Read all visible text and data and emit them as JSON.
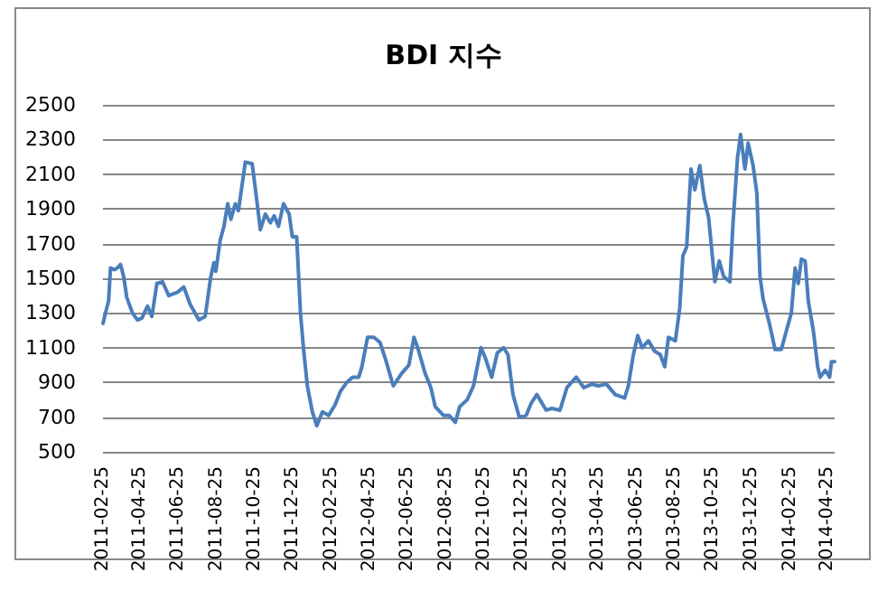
{
  "chart_data": {
    "type": "line",
    "title": "BDI 지수",
    "grid": "y",
    "x": [
      "2011-02-25",
      "2011-03-01",
      "2011-03-06",
      "2011-03-09",
      "2011-03-15",
      "2011-03-20",
      "2011-03-25",
      "2011-03-30",
      "2011-04-04",
      "2011-04-13",
      "2011-04-21",
      "2011-04-28",
      "2011-05-07",
      "2011-05-14",
      "2011-05-22",
      "2011-05-31",
      "2011-06-10",
      "2011-06-24",
      "2011-07-04",
      "2011-07-14",
      "2011-07-28",
      "2011-08-07",
      "2011-08-16",
      "2011-08-21",
      "2011-08-24",
      "2011-08-31",
      "2011-09-06",
      "2011-09-12",
      "2011-09-17",
      "2011-09-24",
      "2011-09-29",
      "2011-10-03",
      "2011-10-10",
      "2011-10-21",
      "2011-10-28",
      "2011-11-03",
      "2011-11-11",
      "2011-11-19",
      "2011-11-25",
      "2011-12-02",
      "2011-12-10",
      "2011-12-19",
      "2011-12-24",
      "2011-12-31",
      "2012-01-06",
      "2012-01-11",
      "2012-01-17",
      "2012-01-25",
      "2012-02-01",
      "2012-02-10",
      "2012-02-20",
      "2012-03-01",
      "2012-03-10",
      "2012-03-20",
      "2012-03-29",
      "2012-04-08",
      "2012-04-13",
      "2012-04-22",
      "2012-05-02",
      "2012-05-12",
      "2012-05-21",
      "2012-06-02",
      "2012-06-15",
      "2012-06-27",
      "2012-07-05",
      "2012-07-11",
      "2012-07-23",
      "2012-08-01",
      "2012-08-08",
      "2012-08-21",
      "2012-08-30",
      "2012-09-09",
      "2012-09-16",
      "2012-09-28",
      "2012-10-08",
      "2012-10-20",
      "2012-10-27",
      "2012-11-06",
      "2012-11-15",
      "2012-11-25",
      "2012-12-02",
      "2012-12-10",
      "2012-12-20",
      "2012-12-31",
      "2013-01-08",
      "2013-01-17",
      "2013-02-01",
      "2013-02-10",
      "2013-02-23",
      "2013-03-06",
      "2013-03-21",
      "2013-04-02",
      "2013-04-15",
      "2013-04-25",
      "2013-05-08",
      "2013-05-22",
      "2013-06-06",
      "2013-06-12",
      "2013-06-20",
      "2013-06-27",
      "2013-07-04",
      "2013-07-14",
      "2013-07-24",
      "2013-08-02",
      "2013-08-09",
      "2013-08-15",
      "2013-08-26",
      "2013-09-02",
      "2013-09-07",
      "2013-09-13",
      "2013-09-20",
      "2013-09-26",
      "2013-10-04",
      "2013-10-11",
      "2013-10-18",
      "2013-10-28",
      "2013-11-04",
      "2013-11-11",
      "2013-11-21",
      "2013-11-26",
      "2013-12-03",
      "2013-12-08",
      "2013-12-15",
      "2013-12-20",
      "2013-12-28",
      "2014-01-03",
      "2014-01-08",
      "2014-01-13",
      "2014-01-23",
      "2014-02-01",
      "2014-02-11",
      "2014-02-20",
      "2014-02-27",
      "2014-03-05",
      "2014-03-10",
      "2014-03-15",
      "2014-03-21",
      "2014-03-26",
      "2014-04-03",
      "2014-04-10",
      "2014-04-14",
      "2014-04-22",
      "2014-04-29",
      "2014-05-02",
      "2014-05-07"
    ],
    "series": [
      {
        "color": "#4a7ebb",
        "values": [
          1240,
          1300,
          1370,
          1560,
          1550,
          1560,
          1580,
          1510,
          1390,
          1300,
          1260,
          1270,
          1340,
          1280,
          1470,
          1480,
          1400,
          1420,
          1450,
          1350,
          1260,
          1280,
          1510,
          1590,
          1540,
          1720,
          1800,
          1930,
          1840,
          1930,
          1890,
          1990,
          2170,
          2160,
          1960,
          1780,
          1870,
          1820,
          1860,
          1800,
          1930,
          1870,
          1740,
          1740,
          1300,
          1090,
          880,
          730,
          650,
          730,
          710,
          770,
          850,
          900,
          930,
          930,
          990,
          1160,
          1160,
          1130,
          1030,
          880,
          950,
          1000,
          1160,
          1100,
          950,
          870,
          760,
          710,
          710,
          670,
          760,
          800,
          880,
          1100,
          1040,
          930,
          1070,
          1100,
          1060,
          830,
          700,
          710,
          780,
          830,
          740,
          750,
          740,
          870,
          930,
          870,
          890,
          880,
          890,
          830,
          810,
          880,
          1060,
          1170,
          1100,
          1140,
          1080,
          1060,
          990,
          1160,
          1140,
          1330,
          1630,
          1680,
          2130,
          2010,
          2150,
          1960,
          1850,
          1480,
          1600,
          1510,
          1480,
          1820,
          2190,
          2330,
          2130,
          2280,
          2150,
          1990,
          1510,
          1380,
          1240,
          1090,
          1090,
          1210,
          1300,
          1560,
          1470,
          1610,
          1600,
          1370,
          1200,
          990,
          930,
          970,
          930,
          1020,
          1020
        ]
      }
    ],
    "xlim": [
      "2011-02-25",
      "2014-05-07"
    ],
    "xticks": [
      "2011-02-25",
      "2011-04-25",
      "2011-06-25",
      "2011-08-25",
      "2011-10-25",
      "2011-12-25",
      "2012-02-25",
      "2012-04-25",
      "2012-06-25",
      "2012-08-25",
      "2012-10-25",
      "2012-12-25",
      "2013-02-25",
      "2013-04-25",
      "2013-06-25",
      "2013-08-25",
      "2013-10-25",
      "2013-12-25",
      "2014-02-25",
      "2014-04-25"
    ],
    "ylim": [
      500,
      2500
    ],
    "yticks": [
      500,
      700,
      900,
      1100,
      1300,
      1500,
      1700,
      1900,
      2100,
      2300,
      2500
    ]
  }
}
